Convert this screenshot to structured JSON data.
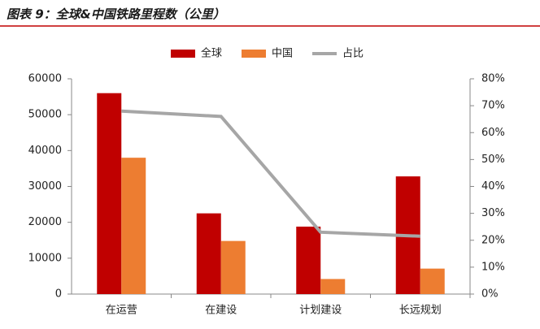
{
  "chart_data": {
    "type": "bar",
    "title": "图表 9：全球&中国铁路里程数（公里）",
    "categories": [
      "在运营",
      "在建设",
      "计划建设",
      "长远规划"
    ],
    "series": [
      {
        "name": "全球",
        "color": "#c00000",
        "values": [
          56000,
          22500,
          18800,
          32800
        ]
      },
      {
        "name": "中国",
        "color": "#ed7d31",
        "values": [
          38000,
          14800,
          4200,
          7100
        ]
      },
      {
        "name": "占比",
        "color": "#a6a6a6",
        "type": "line",
        "axis": "y2",
        "values": [
          68,
          66,
          23,
          21.5
        ]
      }
    ],
    "ylim": [
      0,
      60000
    ],
    "yticks": [
      0,
      10000,
      20000,
      30000,
      40000,
      50000,
      60000
    ],
    "y2lim": [
      0,
      80
    ],
    "y2ticks": [
      {
        "value": 0,
        "label": "0%"
      },
      {
        "value": 10,
        "label": "10%"
      },
      {
        "value": 20,
        "label": "20%"
      },
      {
        "value": 30,
        "label": "30%"
      },
      {
        "value": 40,
        "label": "40%"
      },
      {
        "value": 50,
        "label": "50%"
      },
      {
        "value": 60,
        "label": "60%"
      },
      {
        "value": 70,
        "label": "70%"
      },
      {
        "value": 80,
        "label": "80%"
      }
    ],
    "legend": "top"
  }
}
